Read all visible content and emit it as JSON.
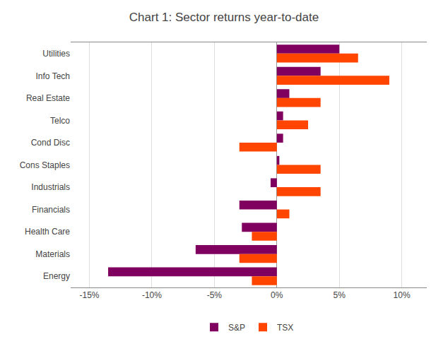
{
  "chart_data": {
    "type": "bar",
    "orientation": "horizontal",
    "title": "Chart 1: Sector returns year-to-date",
    "categories": [
      "Utilities",
      "Info Tech",
      "Real Estate",
      "Telco",
      "Cond Disc",
      "Cons Staples",
      "Industrials",
      "Financials",
      "Health Care",
      "Materials",
      "Energy"
    ],
    "series": [
      {
        "name": "S&P",
        "color": "#800060",
        "values": [
          5.0,
          3.5,
          1.0,
          0.5,
          0.5,
          0.2,
          -0.5,
          -3.0,
          -2.8,
          -6.5,
          -13.5
        ]
      },
      {
        "name": "TSX",
        "color": "#FF4500",
        "values": [
          6.5,
          9.0,
          3.5,
          2.5,
          -3.0,
          3.5,
          3.5,
          1.0,
          -2.0,
          -3.0,
          -2.0
        ]
      }
    ],
    "xlim": [
      -16.5,
      12
    ],
    "xticks": [
      {
        "value": -15,
        "label": "-15%"
      },
      {
        "value": -10,
        "label": "-10%"
      },
      {
        "value": -5,
        "label": "-5%"
      },
      {
        "value": 0,
        "label": "0%"
      },
      {
        "value": 5,
        "label": "5%"
      },
      {
        "value": 10,
        "label": "10%"
      }
    ],
    "grid": true,
    "legend": "bottom"
  }
}
